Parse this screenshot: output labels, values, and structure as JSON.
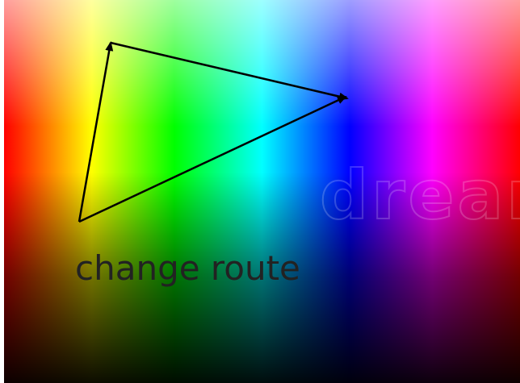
{
  "caption": "change route",
  "watermark": "dream",
  "colors": {
    "arrow": "#000000",
    "caption": "#222222"
  },
  "icons": [
    "arrowhead-icon"
  ]
}
